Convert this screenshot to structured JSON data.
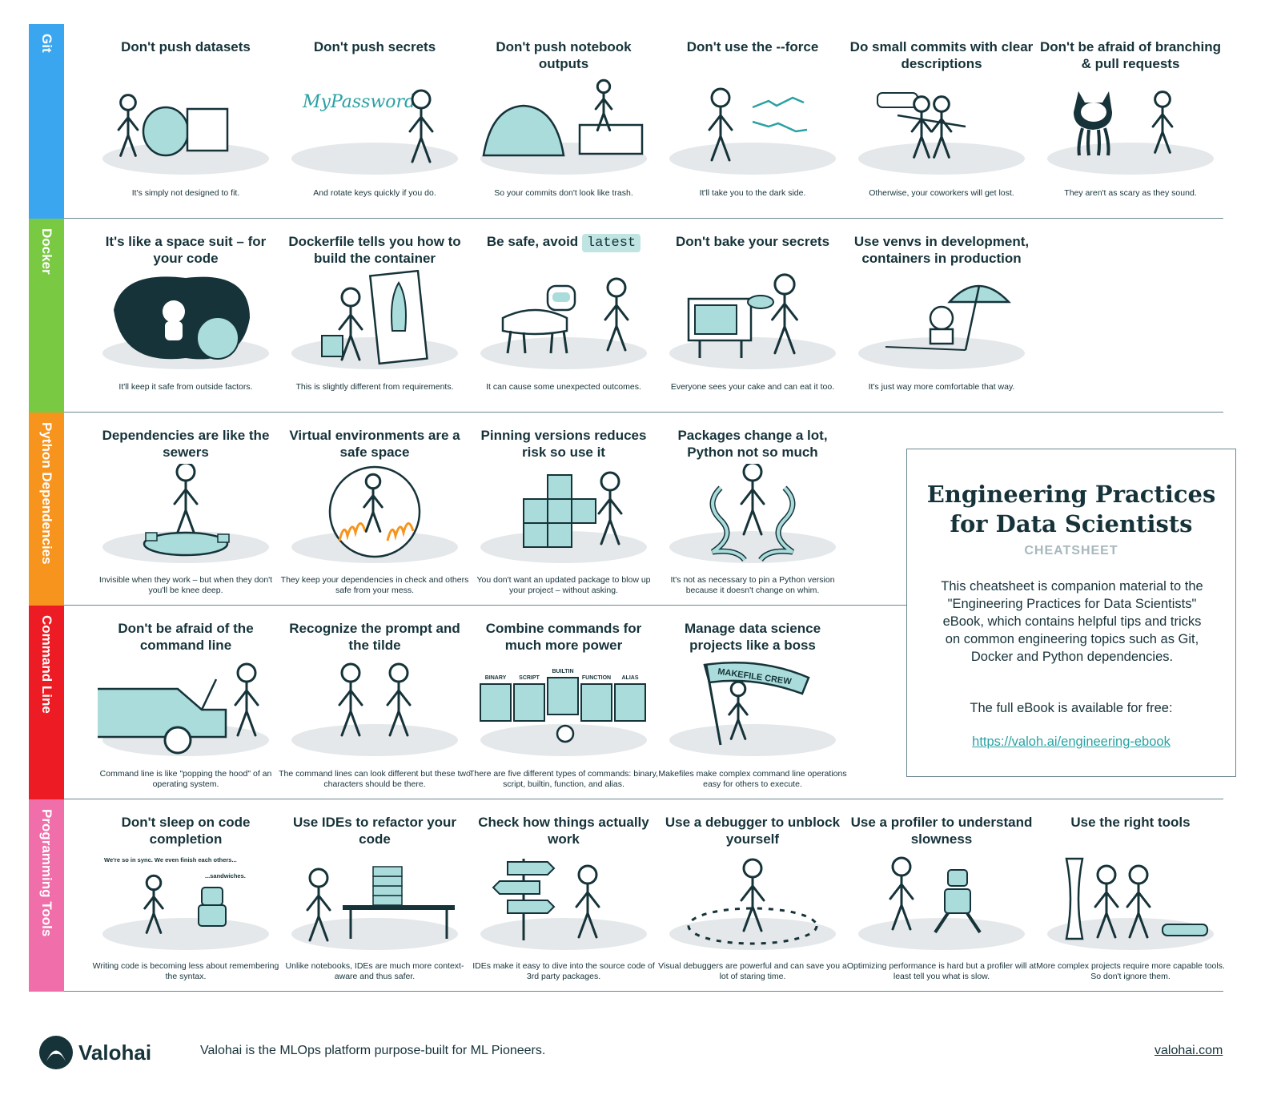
{
  "sections": [
    {
      "label": "Git",
      "color": "#3ba6f0",
      "cards": [
        {
          "title": "Don't push datasets",
          "caption": "It's simply not designed to fit.",
          "icon": "elephant-in-box-icon"
        },
        {
          "title": "Don't push secrets",
          "caption": "And rotate keys quickly if you do.",
          "icon": "password-note-icon",
          "note": "MyPassword"
        },
        {
          "title": "Don't push notebook outputs",
          "caption": "So your commits don't look like trash.",
          "icon": "trash-pile-icon"
        },
        {
          "title": "Don't use the --force",
          "caption": "It'll take you to the dark side.",
          "icon": "force-lightning-icon"
        },
        {
          "title": "Do small commits with clear descriptions",
          "caption": "Otherwise, your coworkers will get lost.",
          "icon": "lost-coworkers-icon"
        },
        {
          "title": "Don't be afraid of branching & pull requests",
          "caption": "They aren't as scary as they sound.",
          "icon": "octocat-icon"
        }
      ]
    },
    {
      "label": "Docker",
      "color": "#7ac943",
      "cards": [
        {
          "title": "It's like a space suit – for your code",
          "caption": "It'll keep it safe from outside factors.",
          "icon": "astronaut-icon"
        },
        {
          "title": "Dockerfile tells you how to build the container",
          "caption": "This is slightly different from requirements.",
          "icon": "rocket-blueprint-icon"
        },
        {
          "title": "Be safe, avoid",
          "title_code": "latest",
          "caption": "It can cause some unexpected outcomes.",
          "icon": "unicorn-costume-icon"
        },
        {
          "title": "Don't bake your secrets",
          "caption": "Everyone sees your cake and can eat it too.",
          "icon": "oven-icon"
        },
        {
          "title": "Use venvs in development, containers in production",
          "caption": "It's just way more comfortable that way.",
          "icon": "beach-umbrella-icon"
        }
      ]
    },
    {
      "label": "Python Dependencies",
      "color": "#f7941d",
      "cards": [
        {
          "title": "Dependencies are like the sewers",
          "caption": "Invisible when they work – but when they don't you'll be knee deep.",
          "icon": "sewer-icon"
        },
        {
          "title": "Virtual environments are a safe space",
          "caption": "They keep your dependencies in check and others safe from your mess.",
          "icon": "safe-bubble-icon"
        },
        {
          "title": "Pinning versions reduces risk so use it",
          "caption": "You don't want an updated package to blow up your project – without asking.",
          "icon": "package-boxes-icon"
        },
        {
          "title": "Packages change a lot, Python not so much",
          "caption": "It's not as necessary to pin a Python version because it doesn't change on whim.",
          "icon": "snakes-icon"
        }
      ]
    },
    {
      "label": "Command Line",
      "color": "#ed1c24",
      "cards": [
        {
          "title": "Don't be afraid of the command line",
          "caption": "Command line is like \"popping the hood\" of an operating system.",
          "icon": "car-hood-icon"
        },
        {
          "title": "Recognize the prompt and the tilde",
          "caption": "The command lines can look different but these two characters should be there.",
          "icon": "two-figures-icon"
        },
        {
          "title": "Combine commands for much more power",
          "caption": "There are five different types of commands: binary, script, builtin, function, and alias.",
          "icon": "command-cards-icon",
          "labels": [
            "BINARY",
            "SCRIPT",
            "BUILTIN",
            "FUNCTION",
            "ALIAS"
          ]
        },
        {
          "title": "Manage data science projects like a boss",
          "caption": "Makefiles make complex command line operations easy for others to execute.",
          "icon": "banner-flag-icon",
          "banner": "MAKEFILE CREW"
        }
      ]
    },
    {
      "label": "Programming Tools",
      "color": "#f06eaa",
      "cards": [
        {
          "title": "Don't sleep on code completion",
          "caption": "Writing code is becoming less about remembering the syntax.",
          "icon": "robot-talk-icon",
          "speech1": "We're so in sync. We even finish each others...",
          "speech2": "...sandwiches."
        },
        {
          "title": "Use IDEs to refactor your code",
          "caption": "Unlike notebooks, IDEs are much more context-aware and thus safer.",
          "icon": "jenga-desk-icon"
        },
        {
          "title": "Check how things actually work",
          "caption": "IDEs make it easy to dive into the source code of 3rd party packages.",
          "icon": "signpost-icon"
        },
        {
          "title": "Use a debugger to unblock yourself",
          "caption": "Visual debuggers are powerful and can save you a lot of staring time.",
          "icon": "detective-icon"
        },
        {
          "title": "Use a profiler to understand slowness",
          "caption": "Optimizing performance is hard but a profiler will at least tell you what is slow.",
          "icon": "robot-run-icon"
        },
        {
          "title": "Use the right tools",
          "caption": "More complex projects require more capable tools. So don't ignore them.",
          "icon": "chainsaw-icon"
        }
      ]
    }
  ],
  "info": {
    "title": "Engineering Practices for Data Scientists",
    "subtitle": "CHEATSHEET",
    "description": "This cheatsheet is companion material to the \"Engineering Practices for Data Scientists\" eBook, which contains helpful tips and tricks on common engineering topics such as Git, Docker and Python dependencies.",
    "free_text": "The full eBook is available for free:",
    "link": "https://valoh.ai/engineering-ebook"
  },
  "footer": {
    "brand": "Valohai",
    "tagline": "Valohai is the MLOps platform purpose-built for ML Pioneers.",
    "url": "valohai.com"
  },
  "colors": {
    "ink": "#16333a",
    "accent": "#2aa1a3",
    "teal_fill": "#a9dcda",
    "ground": "#e4e8ea"
  }
}
